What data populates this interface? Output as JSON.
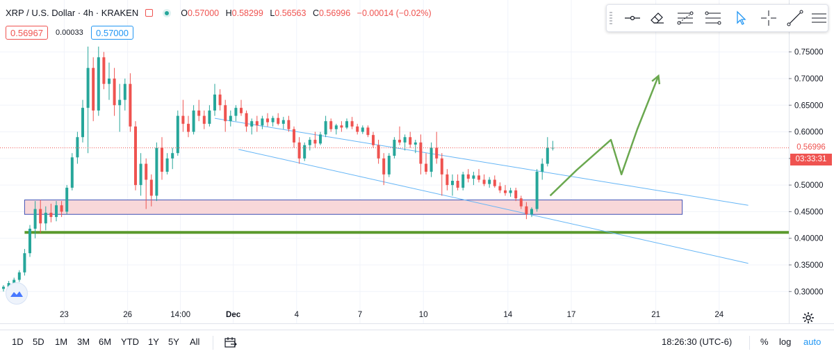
{
  "header": {
    "symbol": "XRP / U.S. Dollar · 4h · KRAKEN",
    "open_key": "O",
    "open": "0.57000",
    "high_key": "H",
    "high": "0.58299",
    "low_key": "L",
    "low": "0.56563",
    "close_key": "C",
    "close": "0.56996",
    "change": "−0.00014 (−0.02%)"
  },
  "prices": {
    "sell": "0.56967",
    "spread": "0.00033",
    "buy": "0.57000"
  },
  "price_axis": {
    "current_price": "0.56996",
    "countdown": "03:33:31"
  },
  "chart_data": {
    "type": "candlestick",
    "symbol": "XRP / U.S. Dollar",
    "interval": "4h",
    "exchange": "KRAKEN",
    "ylim": [
      0.27,
      0.78
    ],
    "y_ticks": [
      0.3,
      0.35,
      0.4,
      0.45,
      0.5,
      0.55,
      0.6,
      0.65,
      0.7,
      0.75
    ],
    "y_tick_labels": [
      "0.30000",
      "0.35000",
      "0.40000",
      "0.45000",
      "0.50000",
      "0.55000",
      "0.60000",
      "0.65000",
      "0.70000",
      "0.75000"
    ],
    "x_tick_labels": [
      "23",
      "26",
      "14:00",
      "Dec",
      "4",
      "7",
      "10",
      "14",
      "17",
      "21",
      "24"
    ],
    "x_tick_bold": [
      false,
      false,
      false,
      true,
      false,
      false,
      false,
      false,
      false,
      false,
      false
    ],
    "x_tick_index": [
      11.5,
      23.5,
      33.5,
      43.5,
      55.5,
      67.5,
      79.5,
      95.5,
      107.5,
      123.5,
      135.5
    ],
    "x_range": [
      0,
      141
    ],
    "last_price": 0.56996,
    "candles": [
      [
        0.305,
        0.312,
        0.3,
        0.309
      ],
      [
        0.309,
        0.32,
        0.306,
        0.316
      ],
      [
        0.316,
        0.326,
        0.312,
        0.322
      ],
      [
        0.322,
        0.34,
        0.318,
        0.336
      ],
      [
        0.336,
        0.38,
        0.33,
        0.372
      ],
      [
        0.372,
        0.425,
        0.365,
        0.418
      ],
      [
        0.418,
        0.47,
        0.4,
        0.455
      ],
      [
        0.455,
        0.472,
        0.41,
        0.428
      ],
      [
        0.428,
        0.46,
        0.415,
        0.448
      ],
      [
        0.448,
        0.465,
        0.43,
        0.44
      ],
      [
        0.44,
        0.47,
        0.432,
        0.462
      ],
      [
        0.462,
        0.47,
        0.44,
        0.45
      ],
      [
        0.45,
        0.5,
        0.445,
        0.495
      ],
      [
        0.495,
        0.56,
        0.49,
        0.552
      ],
      [
        0.552,
        0.6,
        0.54,
        0.59
      ],
      [
        0.59,
        0.66,
        0.58,
        0.645
      ],
      [
        0.645,
        0.76,
        0.56,
        0.72
      ],
      [
        0.72,
        0.74,
        0.62,
        0.64
      ],
      [
        0.64,
        0.76,
        0.63,
        0.74
      ],
      [
        0.74,
        0.75,
        0.68,
        0.69
      ],
      [
        0.69,
        0.73,
        0.66,
        0.7
      ],
      [
        0.7,
        0.72,
        0.63,
        0.65
      ],
      [
        0.65,
        0.69,
        0.6,
        0.66
      ],
      [
        0.66,
        0.7,
        0.64,
        0.69
      ],
      [
        0.69,
        0.71,
        0.6,
        0.61
      ],
      [
        0.61,
        0.62,
        0.49,
        0.5
      ],
      [
        0.5,
        0.56,
        0.48,
        0.54
      ],
      [
        0.54,
        0.55,
        0.455,
        0.51
      ],
      [
        0.51,
        0.52,
        0.46,
        0.48
      ],
      [
        0.48,
        0.58,
        0.47,
        0.57
      ],
      [
        0.57,
        0.59,
        0.51,
        0.525
      ],
      [
        0.525,
        0.56,
        0.52,
        0.55
      ],
      [
        0.55,
        0.57,
        0.53,
        0.56
      ],
      [
        0.56,
        0.64,
        0.555,
        0.63
      ],
      [
        0.63,
        0.66,
        0.6,
        0.615
      ],
      [
        0.615,
        0.63,
        0.59,
        0.6
      ],
      [
        0.6,
        0.65,
        0.595,
        0.64
      ],
      [
        0.64,
        0.66,
        0.62,
        0.63
      ],
      [
        0.63,
        0.64,
        0.605,
        0.615
      ],
      [
        0.615,
        0.65,
        0.61,
        0.64
      ],
      [
        0.64,
        0.69,
        0.63,
        0.67
      ],
      [
        0.67,
        0.68,
        0.64,
        0.65
      ],
      [
        0.65,
        0.66,
        0.6,
        0.62
      ],
      [
        0.62,
        0.64,
        0.61,
        0.63
      ],
      [
        0.63,
        0.65,
        0.62,
        0.645
      ],
      [
        0.645,
        0.66,
        0.63,
        0.635
      ],
      [
        0.635,
        0.64,
        0.6,
        0.61
      ],
      [
        0.61,
        0.625,
        0.595,
        0.62
      ],
      [
        0.62,
        0.63,
        0.6,
        0.612
      ],
      [
        0.612,
        0.63,
        0.605,
        0.625
      ],
      [
        0.625,
        0.635,
        0.61,
        0.618
      ],
      [
        0.618,
        0.63,
        0.61,
        0.626
      ],
      [
        0.626,
        0.635,
        0.612,
        0.615
      ],
      [
        0.615,
        0.628,
        0.605,
        0.622
      ],
      [
        0.622,
        0.63,
        0.6,
        0.605
      ],
      [
        0.605,
        0.61,
        0.57,
        0.58
      ],
      [
        0.58,
        0.59,
        0.54,
        0.55
      ],
      [
        0.55,
        0.58,
        0.545,
        0.575
      ],
      [
        0.575,
        0.59,
        0.565,
        0.585
      ],
      [
        0.585,
        0.6,
        0.57,
        0.578
      ],
      [
        0.578,
        0.6,
        0.575,
        0.595
      ],
      [
        0.595,
        0.63,
        0.59,
        0.62
      ],
      [
        0.62,
        0.625,
        0.6,
        0.605
      ],
      [
        0.605,
        0.615,
        0.595,
        0.612
      ],
      [
        0.612,
        0.62,
        0.6,
        0.608
      ],
      [
        0.608,
        0.625,
        0.605,
        0.62
      ],
      [
        0.62,
        0.628,
        0.605,
        0.61
      ],
      [
        0.61,
        0.615,
        0.595,
        0.6
      ],
      [
        0.6,
        0.612,
        0.596,
        0.608
      ],
      [
        0.608,
        0.612,
        0.59,
        0.594
      ],
      [
        0.594,
        0.6,
        0.57,
        0.575
      ],
      [
        0.575,
        0.585,
        0.54,
        0.55
      ],
      [
        0.55,
        0.56,
        0.5,
        0.52
      ],
      [
        0.52,
        0.56,
        0.515,
        0.555
      ],
      [
        0.555,
        0.59,
        0.55,
        0.585
      ],
      [
        0.585,
        0.61,
        0.575,
        0.58
      ],
      [
        0.58,
        0.595,
        0.565,
        0.59
      ],
      [
        0.59,
        0.6,
        0.57,
        0.576
      ],
      [
        0.576,
        0.585,
        0.56,
        0.58
      ],
      [
        0.58,
        0.595,
        0.52,
        0.54
      ],
      [
        0.54,
        0.56,
        0.52,
        0.525
      ],
      [
        0.525,
        0.58,
        0.515,
        0.57
      ],
      [
        0.57,
        0.6,
        0.54,
        0.55
      ],
      [
        0.55,
        0.56,
        0.48,
        0.52
      ],
      [
        0.52,
        0.53,
        0.49,
        0.5
      ],
      [
        0.5,
        0.52,
        0.48,
        0.508
      ],
      [
        0.508,
        0.52,
        0.49,
        0.495
      ],
      [
        0.495,
        0.525,
        0.49,
        0.52
      ],
      [
        0.52,
        0.53,
        0.505,
        0.512
      ],
      [
        0.512,
        0.525,
        0.5,
        0.518
      ],
      [
        0.518,
        0.53,
        0.505,
        0.51
      ],
      [
        0.51,
        0.52,
        0.498,
        0.502
      ],
      [
        0.502,
        0.515,
        0.495,
        0.51
      ],
      [
        0.51,
        0.518,
        0.495,
        0.498
      ],
      [
        0.498,
        0.505,
        0.485,
        0.49
      ],
      [
        0.49,
        0.5,
        0.48,
        0.485
      ],
      [
        0.485,
        0.495,
        0.478,
        0.49
      ],
      [
        0.49,
        0.495,
        0.47,
        0.475
      ],
      [
        0.475,
        0.48,
        0.455,
        0.46
      ],
      [
        0.46,
        0.468,
        0.436,
        0.445
      ],
      [
        0.445,
        0.458,
        0.44,
        0.455
      ],
      [
        0.455,
        0.53,
        0.45,
        0.525
      ],
      [
        0.525,
        0.55,
        0.51,
        0.54
      ],
      [
        0.54,
        0.59,
        0.535,
        0.57
      ],
      [
        0.57,
        0.583,
        0.565,
        0.57
      ]
    ],
    "annotations": {
      "channel_upper": [
        [
          0.0,
          0.69
        ],
        [
          141,
          0.462
        ]
      ],
      "channel_upper_start_index": 40,
      "channel_lower": [
        [
          44.5,
          0.567
        ],
        [
          141,
          0.353
        ]
      ],
      "support_zone": [
        0.445,
        0.472
      ],
      "support_zone_x": [
        4,
        128.5
      ],
      "horizontal_support": 0.411,
      "horizontal_support_x": [
        4,
        141
      ],
      "projection_path": [
        [
          103.5,
          0.48
        ],
        [
          108.5,
          0.528
        ],
        [
          115,
          0.585
        ],
        [
          117,
          0.52
        ],
        [
          120,
          0.605
        ],
        [
          124,
          0.705
        ]
      ]
    }
  },
  "bottom_bar": {
    "ranges": [
      "1D",
      "5D",
      "1M",
      "3M",
      "6M",
      "YTD",
      "1Y",
      "5Y",
      "All"
    ],
    "time": "18:26:30 (UTC-6)",
    "percent": "%",
    "log": "log",
    "auto": "auto"
  },
  "colors": {
    "up": "#26a69a",
    "down": "#ef5350",
    "channel": "#64b5f6",
    "zone_fill": "#f8d7d9",
    "zone_border": "#3f51b5",
    "support": "#5b9a2e",
    "projection": "#6aa84f",
    "accent": "#2196f3"
  },
  "toolbar": [
    "horizontal-line-icon",
    "eraser-icon",
    "fib-retracement-icon",
    "regression-trend-icon",
    "cursor-arrow-icon",
    "crosshair-icon",
    "trend-line-icon",
    "menu-icon"
  ]
}
